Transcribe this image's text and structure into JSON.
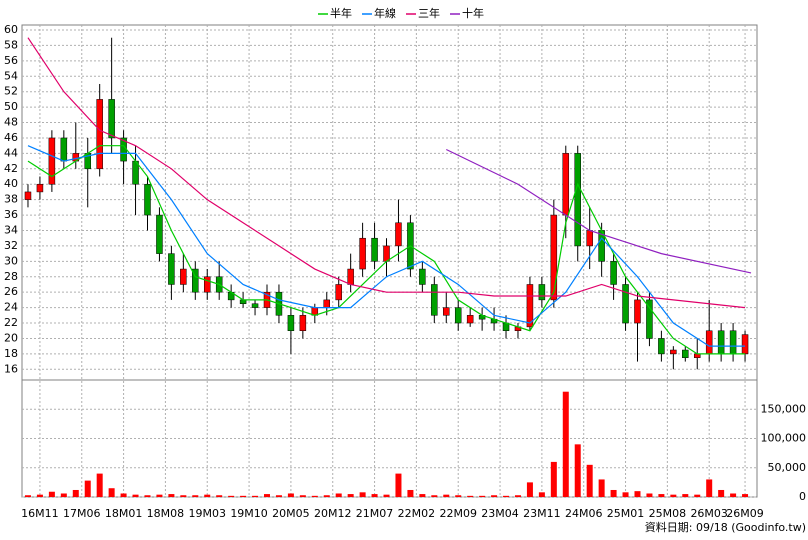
{
  "chart_data": {
    "type": "candlestick",
    "legend": [
      "半年",
      "年線",
      "三年",
      "十年"
    ],
    "footer": "資料日期: 09/18 (Goodinfo.tw)",
    "xlim": [
      -3,
      120
    ],
    "xticks": [
      {
        "value": 0,
        "label": "16M11"
      },
      {
        "value": 7,
        "label": "17M06"
      },
      {
        "value": 14,
        "label": "18M01"
      },
      {
        "value": 21,
        "label": "18M08"
      },
      {
        "value": 28,
        "label": "19M03"
      },
      {
        "value": 35,
        "label": "19M10"
      },
      {
        "value": 42,
        "label": "20M05"
      },
      {
        "value": 49,
        "label": "20M12"
      },
      {
        "value": 56,
        "label": "21M07"
      },
      {
        "value": 63,
        "label": "22M02"
      },
      {
        "value": 70,
        "label": "22M09"
      },
      {
        "value": 77,
        "label": "23M04"
      },
      {
        "value": 84,
        "label": "23M11"
      },
      {
        "value": 91,
        "label": "24M06"
      },
      {
        "value": 98,
        "label": "25M01"
      },
      {
        "value": 105,
        "label": "25M08"
      },
      {
        "value": 112,
        "label": "26M03"
      },
      {
        "value": 118,
        "label": "26M09"
      }
    ],
    "ylim": [
      15,
      60
    ],
    "yticks": [
      16,
      18,
      20,
      22,
      24,
      26,
      28,
      30,
      32,
      34,
      36,
      38,
      40,
      42,
      44,
      46,
      48,
      50,
      52,
      54,
      56,
      58,
      60
    ],
    "volume_ylim": [
      0,
      200000
    ],
    "volume_yticks": [
      {
        "value": 0,
        "label": "0"
      },
      {
        "value": 50000,
        "label": "50,000"
      },
      {
        "value": 100000,
        "label": "100,000"
      },
      {
        "value": 150000,
        "label": "150,000"
      }
    ],
    "up_color": "#ff0000",
    "down_color": "#00a000",
    "volume_color": "#ff0000",
    "candles": [
      [
        -2,
        38,
        40,
        37,
        39,
        3000
      ],
      [
        0,
        39,
        41,
        38,
        40,
        4000
      ],
      [
        2,
        40,
        47,
        39,
        46,
        9000
      ],
      [
        4,
        46,
        47,
        42,
        43,
        6000
      ],
      [
        6,
        43,
        48,
        42,
        44,
        12000
      ],
      [
        8,
        44,
        46,
        37,
        42,
        28000
      ],
      [
        10,
        42,
        53,
        41,
        51,
        40000
      ],
      [
        12,
        51,
        59,
        44,
        46,
        15000
      ],
      [
        14,
        46,
        47,
        40,
        43,
        6000
      ],
      [
        16,
        43,
        45,
        36,
        40,
        4000
      ],
      [
        18,
        40,
        41,
        34,
        36,
        3000
      ],
      [
        20,
        36,
        37,
        30,
        31,
        4000
      ],
      [
        22,
        31,
        32,
        25,
        27,
        5000
      ],
      [
        24,
        27,
        31,
        26,
        29,
        3000
      ],
      [
        26,
        29,
        30,
        25,
        26,
        3000
      ],
      [
        28,
        26,
        29,
        25,
        28,
        4000
      ],
      [
        30,
        28,
        30,
        25,
        26,
        3000
      ],
      [
        32,
        26,
        27,
        24,
        25,
        2000
      ],
      [
        34,
        25,
        26,
        24,
        24.5,
        2000
      ],
      [
        36,
        24.5,
        25,
        23,
        24,
        2000
      ],
      [
        38,
        24,
        27,
        23,
        26,
        5000
      ],
      [
        40,
        26,
        27,
        22,
        23,
        3000
      ],
      [
        42,
        23,
        24,
        18,
        21,
        6000
      ],
      [
        44,
        21,
        24,
        20,
        23,
        3000
      ],
      [
        46,
        23,
        24.5,
        22,
        24,
        2000
      ],
      [
        48,
        24,
        26,
        23,
        25,
        3000
      ],
      [
        50,
        25,
        28,
        24,
        27,
        6000
      ],
      [
        52,
        27,
        31,
        26,
        29,
        5000
      ],
      [
        54,
        29,
        35,
        28,
        33,
        8000
      ],
      [
        56,
        33,
        35,
        29,
        30,
        5000
      ],
      [
        58,
        30,
        33,
        28,
        32,
        4000
      ],
      [
        60,
        32,
        38,
        30,
        35,
        40000
      ],
      [
        62,
        35,
        36,
        28,
        29,
        12000
      ],
      [
        64,
        29,
        30,
        26,
        27,
        5000
      ],
      [
        66,
        27,
        28,
        22,
        23,
        3000
      ],
      [
        68,
        23,
        26,
        22,
        24,
        4000
      ],
      [
        70,
        24,
        25,
        21,
        22,
        3000
      ],
      [
        72,
        22,
        24,
        21.5,
        23,
        2000
      ],
      [
        74,
        23,
        24,
        21,
        22.5,
        2000
      ],
      [
        76,
        22.5,
        24,
        21,
        22,
        3000
      ],
      [
        78,
        22,
        23,
        20,
        21,
        2000
      ],
      [
        80,
        21,
        22,
        20,
        21.5,
        3000
      ],
      [
        82,
        21.5,
        28,
        21,
        27,
        25000
      ],
      [
        84,
        27,
        28,
        24,
        25,
        8000
      ],
      [
        86,
        25,
        38,
        24,
        36,
        60000
      ],
      [
        88,
        36,
        45,
        33,
        44,
        180000
      ],
      [
        90,
        44,
        45,
        30,
        32,
        90000
      ],
      [
        92,
        32,
        37,
        29,
        34,
        55000
      ],
      [
        94,
        34,
        35,
        28,
        30,
        30000
      ],
      [
        96,
        30,
        31,
        25,
        27,
        12000
      ],
      [
        98,
        27,
        28,
        21,
        22,
        8000
      ],
      [
        100,
        22,
        26,
        17,
        25,
        10000
      ],
      [
        102,
        25,
        26,
        19,
        20,
        6000
      ],
      [
        104,
        20,
        21,
        17,
        18,
        5000
      ],
      [
        106,
        18,
        19,
        16,
        18.5,
        4000
      ],
      [
        108,
        18.5,
        19,
        17,
        17.5,
        5000
      ],
      [
        110,
        17.5,
        20,
        16,
        18,
        4000
      ],
      [
        112,
        18,
        25,
        17,
        21,
        30000
      ],
      [
        114,
        21,
        22,
        17,
        18,
        12000
      ],
      [
        116,
        21,
        22,
        17,
        18,
        6000
      ],
      [
        118,
        18,
        21,
        17,
        20.5,
        5000
      ]
    ],
    "series": [
      {
        "name": "半年",
        "color": "#00cc00",
        "x": [
          -2,
          2,
          6,
          10,
          14,
          18,
          22,
          26,
          30,
          34,
          38,
          42,
          46,
          50,
          54,
          58,
          62,
          66,
          70,
          74,
          78,
          82,
          86,
          88,
          90,
          94,
          98,
          102,
          106,
          110,
          114,
          118
        ],
        "values": [
          43,
          41,
          43,
          45,
          45,
          41,
          34,
          28,
          27,
          25,
          25,
          24,
          23,
          24,
          27,
          30,
          32,
          30,
          25,
          23,
          22,
          21,
          26,
          35,
          40,
          34,
          28,
          24,
          20,
          18,
          18,
          18
        ]
      },
      {
        "name": "年線",
        "color": "#0080ff",
        "x": [
          -2,
          4,
          10,
          16,
          22,
          28,
          34,
          40,
          46,
          52,
          58,
          64,
          70,
          76,
          82,
          88,
          94,
          100,
          106,
          112,
          118
        ],
        "values": [
          45,
          43,
          44,
          44,
          38,
          31,
          27,
          25,
          24,
          24,
          28,
          30,
          27,
          23,
          22,
          26,
          33,
          28,
          22,
          19,
          19
        ]
      },
      {
        "name": "三年",
        "color": "#e0006a",
        "x": [
          -2,
          4,
          10,
          16,
          22,
          28,
          34,
          40,
          46,
          52,
          58,
          64,
          70,
          76,
          82,
          88,
          94,
          100,
          106,
          112,
          118
        ],
        "values": [
          59,
          52,
          47,
          45,
          42,
          38,
          35,
          32,
          29,
          27,
          26,
          26,
          26,
          25.5,
          25.5,
          25.5,
          27,
          25.5,
          25,
          24.5,
          24
        ]
      },
      {
        "name": "十年",
        "color": "#9020c0",
        "x": [
          68,
          80,
          92,
          104,
          119
        ],
        "values": [
          44.5,
          40,
          34,
          31,
          28.5
        ]
      }
    ]
  }
}
